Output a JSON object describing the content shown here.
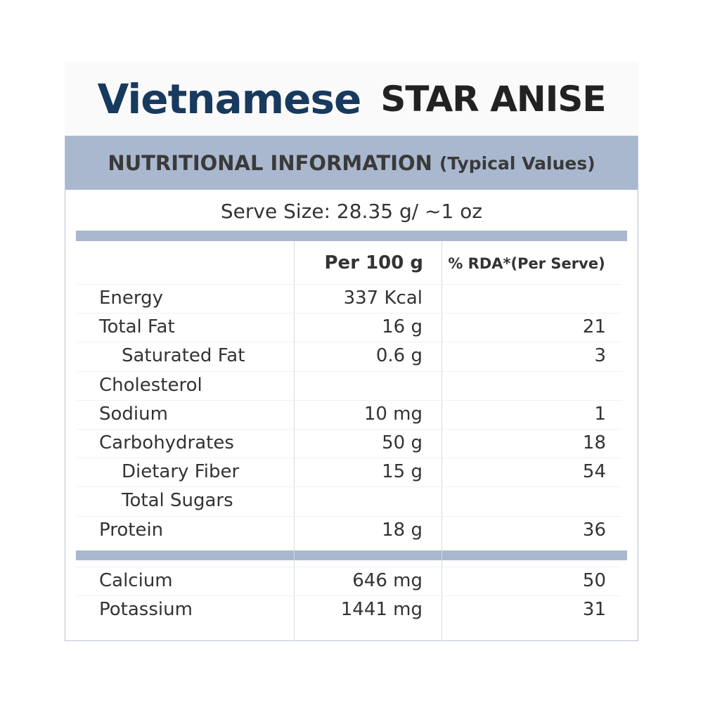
{
  "header": {
    "title_main": "Vietnamese",
    "title_sub": "STAR ANISE"
  },
  "table": {
    "heading": "NUTRITIONAL INFORMATION",
    "heading_note": "(Typical Values)",
    "serve_size": "Serve Size: 28.35 g/ ~1 oz",
    "columns": [
      "Per 100 g",
      "% RDA*(Per Serve)"
    ],
    "rows": [
      {
        "nutrient": "Energy",
        "per_100g": "337 Kcal"
      },
      {
        "nutrient": "Total Fat",
        "per_100g": "16 g",
        "rda": 21
      },
      {
        "nutrient": "Saturated Fat",
        "per_100g": "0.6 g",
        "rda": 3
      },
      {
        "nutrient": "Cholesterol"
      },
      {
        "nutrient": "Sodium",
        "per_100g": "10 mg",
        "rda": 1
      },
      {
        "nutrient": "Carbohydrates",
        "per_100g": "50 g",
        "rda": 18
      },
      {
        "nutrient": "Dietary Fiber",
        "per_100g": "15 g",
        "rda": 54
      },
      {
        "nutrient": "Total Sugars"
      },
      {
        "nutrient": "Protein",
        "per_100g": "18 g",
        "rda": 36
      }
    ],
    "minerals": [
      {
        "nutrient": "Calcium",
        "per_100g": "646 mg",
        "rda": 50
      },
      {
        "nutrient": "Potassium",
        "per_100g": "1441 mg",
        "rda": 31
      }
    ]
  }
}
